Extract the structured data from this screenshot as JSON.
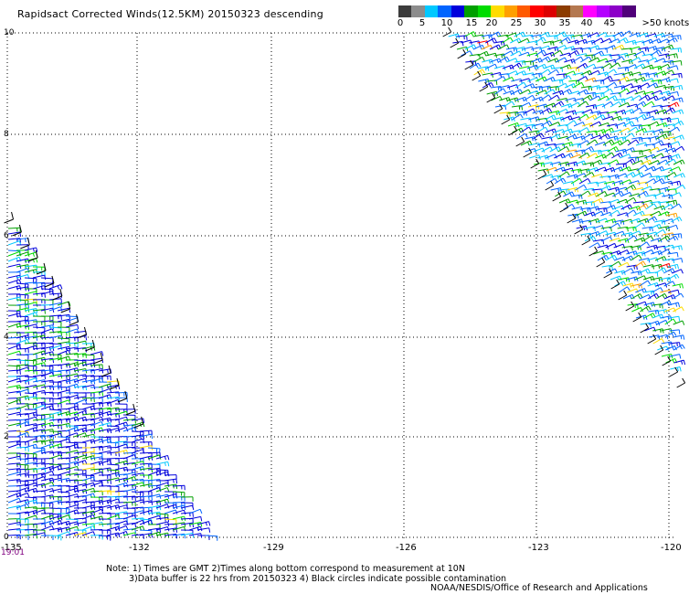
{
  "title": "Rapidsact Corrected Winds(12.5KM) 20150323 descending",
  "colorbar": {
    "colors": [
      "#3c3c3c",
      "#8c8c8c",
      "#00c8ff",
      "#0064ff",
      "#0000dc",
      "#00a000",
      "#00dc00",
      "#ffdc00",
      "#ffa000",
      "#ff5a00",
      "#ff0000",
      "#dc0000",
      "#8c3c00",
      "#b47850",
      "#ff00ff",
      "#b400ff",
      "#8c00c8",
      "#50007a"
    ],
    "tick_labels": [
      "0",
      "5",
      "10",
      "15",
      "20",
      "25",
      "30",
      "35",
      "40",
      "45",
      ">50 knots"
    ]
  },
  "map": {
    "x_tick_labels": [
      "-135",
      "-132",
      "-129",
      "-126",
      "-123",
      "-120"
    ],
    "y_tick_labels": [
      "0",
      "2",
      "4",
      "6",
      "8",
      "10"
    ],
    "time_label": "19:01"
  },
  "notes": {
    "line1": "Note: 1) Times are GMT 2)Times along bottom correspond to measurement at 10N",
    "line2": "3)Data buffer is 22 hrs from 20150323 4) Black circles indicate possible contamination",
    "credit": "NOAA/NESDIS/Office of Research and Applications"
  }
}
